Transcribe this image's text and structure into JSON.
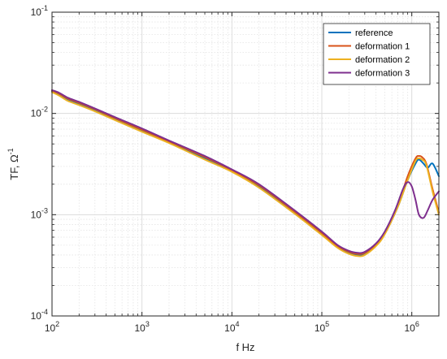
{
  "chart_data": {
    "type": "line",
    "xscale": "log",
    "yscale": "log",
    "xlim": [
      100,
      2000000
    ],
    "ylim": [
      0.0001,
      0.1
    ],
    "grid": true,
    "legend_position": "top-right",
    "xlabel": "f  Hz",
    "ylabel_main": "TF,  Ω",
    "ylabel_sup": "-1",
    "x_ticks": [
      {
        "value": 100,
        "base": "10",
        "exp": "2"
      },
      {
        "value": 1000,
        "base": "10",
        "exp": "3"
      },
      {
        "value": 10000,
        "base": "10",
        "exp": "4"
      },
      {
        "value": 100000,
        "base": "10",
        "exp": "5"
      },
      {
        "value": 1000000,
        "base": "10",
        "exp": "6"
      }
    ],
    "y_ticks": [
      {
        "value": 0.0001,
        "base": "10",
        "exp": "-4"
      },
      {
        "value": 0.001,
        "base": "10",
        "exp": "-3"
      },
      {
        "value": 0.01,
        "base": "10",
        "exp": "-2"
      },
      {
        "value": 0.1,
        "base": "10",
        "exp": "-1"
      }
    ],
    "series": [
      {
        "name": "reference",
        "color": "#0072BD",
        "x": [
          100,
          120,
          150,
          200,
          300,
          500,
          1000,
          2000,
          5000,
          10000,
          20000,
          50000,
          100000,
          150000,
          200000,
          250000,
          300000,
          400000,
          500000,
          700000,
          900000,
          1100000,
          1200000,
          1350000,
          1500000,
          1700000,
          2000000
        ],
        "y": [
          0.0165,
          0.0155,
          0.0138,
          0.0125,
          0.0108,
          0.0088,
          0.0068,
          0.0052,
          0.0036,
          0.0027,
          0.0019,
          0.00105,
          0.00065,
          0.00048,
          0.00042,
          0.0004,
          0.00041,
          0.0005,
          0.00065,
          0.0012,
          0.0022,
          0.0032,
          0.0035,
          0.0032,
          0.0029,
          0.0032,
          0.0024
        ]
      },
      {
        "name": "deformation 1",
        "color": "#D95319",
        "x": [
          100,
          120,
          150,
          200,
          300,
          500,
          1000,
          2000,
          5000,
          10000,
          20000,
          50000,
          100000,
          150000,
          200000,
          250000,
          300000,
          400000,
          500000,
          700000,
          900000,
          1100000,
          1200000,
          1300000,
          1450000,
          1700000,
          2000000
        ],
        "y": [
          0.0168,
          0.0157,
          0.014,
          0.0127,
          0.011,
          0.009,
          0.0069,
          0.0053,
          0.0037,
          0.00275,
          0.00195,
          0.00107,
          0.00066,
          0.00049,
          0.00043,
          0.00041,
          0.00042,
          0.00051,
          0.00066,
          0.00125,
          0.0024,
          0.0036,
          0.0038,
          0.0037,
          0.0032,
          0.0018,
          0.00105
        ]
      },
      {
        "name": "deformation 2",
        "color": "#EDB120",
        "x": [
          100,
          120,
          150,
          200,
          300,
          500,
          1000,
          2000,
          5000,
          10000,
          20000,
          50000,
          100000,
          150000,
          200000,
          250000,
          300000,
          400000,
          500000,
          700000,
          900000,
          1100000,
          1200000,
          1300000,
          1450000,
          1700000,
          2000000
        ],
        "y": [
          0.0162,
          0.015,
          0.0133,
          0.0121,
          0.0105,
          0.0086,
          0.0066,
          0.0051,
          0.0035,
          0.00265,
          0.00185,
          0.00102,
          0.00063,
          0.00047,
          0.00041,
          0.00039,
          0.0004,
          0.00049,
          0.00064,
          0.0012,
          0.0022,
          0.0034,
          0.0036,
          0.0035,
          0.0031,
          0.0017,
          0.001
        ]
      },
      {
        "name": "deformation 3",
        "color": "#7E2F8E",
        "x": [
          100,
          120,
          150,
          200,
          300,
          500,
          1000,
          2000,
          5000,
          10000,
          20000,
          50000,
          100000,
          150000,
          200000,
          250000,
          300000,
          400000,
          500000,
          650000,
          800000,
          900000,
          1000000,
          1100000,
          1200000,
          1350000,
          1500000,
          1700000,
          2000000
        ],
        "y": [
          0.017,
          0.016,
          0.0143,
          0.013,
          0.0112,
          0.0092,
          0.0071,
          0.0054,
          0.0038,
          0.0028,
          0.002,
          0.0011,
          0.00068,
          0.0005,
          0.00044,
          0.00042,
          0.00043,
          0.00052,
          0.00068,
          0.0011,
          0.0018,
          0.0021,
          0.0019,
          0.0014,
          0.001,
          0.00093,
          0.0011,
          0.0014,
          0.0017
        ]
      }
    ]
  }
}
